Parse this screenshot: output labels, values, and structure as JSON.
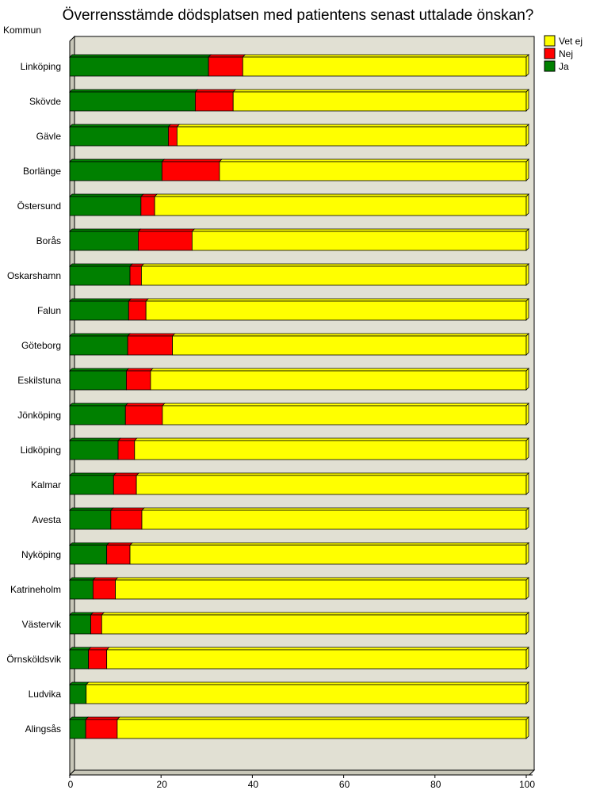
{
  "chart_data": {
    "type": "bar",
    "orientation": "horizontal",
    "stacked": true,
    "title": "Överrensstämde dödsplatsen med patientens senast uttalade önskan?",
    "ylabel": "Kommun",
    "xlabel": "",
    "xlim": [
      0,
      100
    ],
    "xticks": [
      "0",
      "20",
      "40",
      "60",
      "80",
      "100"
    ],
    "legend_position": "top-right",
    "categories": [
      "Linköping",
      "Skövde",
      "Gävle",
      "Borlänge",
      "Östersund",
      "Borås",
      "Oskarshamn",
      "Falun",
      "Göteborg",
      "Eskilstuna",
      "Jönköping",
      "Lidköping",
      "Kalmar",
      "Avesta",
      "Nyköping",
      "Katrineholm",
      "Västervik",
      "Örnsköldsvik",
      "Ludvika",
      "Alingsås"
    ],
    "series": [
      {
        "name": "Ja",
        "color": "#008000",
        "values": [
          30.4,
          27.5,
          21.6,
          20.2,
          15.6,
          15.0,
          13.2,
          12.9,
          12.7,
          12.4,
          12.2,
          10.6,
          9.6,
          9.0,
          8.1,
          5.1,
          4.6,
          4.1,
          3.6,
          3.5
        ]
      },
      {
        "name": "Nej",
        "color": "#ff0000",
        "values": [
          7.5,
          8.3,
          1.9,
          12.6,
          3.0,
          11.8,
          2.5,
          3.8,
          9.8,
          5.3,
          8.1,
          3.6,
          5.0,
          6.8,
          5.1,
          4.9,
          2.4,
          4.0,
          0,
          6.9
        ]
      },
      {
        "name": "Vet ej",
        "color": "#ffff00",
        "values": [
          62.1,
          64.2,
          76.5,
          67.2,
          81.4,
          73.2,
          84.3,
          83.3,
          77.5,
          82.3,
          79.7,
          85.8,
          85.4,
          84.2,
          86.8,
          90.0,
          93.0,
          91.9,
          96.4,
          89.6
        ]
      }
    ]
  }
}
